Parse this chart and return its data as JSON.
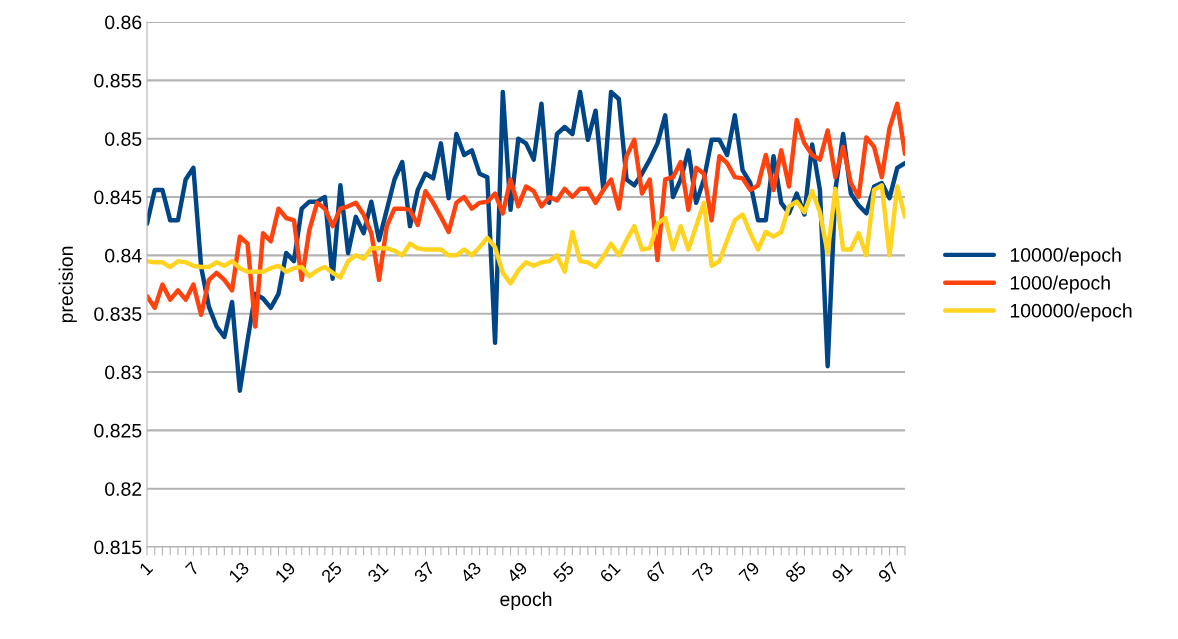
{
  "chart_data": {
    "type": "line",
    "xlabel": "epoch",
    "ylabel": "precision",
    "ylim": [
      0.815,
      0.86
    ],
    "yticks": [
      0.815,
      0.82,
      0.825,
      0.83,
      0.835,
      0.84,
      0.845,
      0.85,
      0.855,
      0.86
    ],
    "grid": "y",
    "legend": "right",
    "marker": "none",
    "line_style": "solid",
    "categories": [
      "1",
      null,
      null,
      null,
      null,
      null,
      "7",
      null,
      null,
      null,
      null,
      null,
      "13",
      null,
      null,
      null,
      null,
      null,
      "19",
      null,
      null,
      null,
      null,
      null,
      "25",
      null,
      null,
      null,
      null,
      null,
      "31",
      null,
      null,
      null,
      null,
      null,
      "37",
      null,
      null,
      null,
      null,
      null,
      "43",
      null,
      null,
      null,
      null,
      null,
      "49",
      null,
      null,
      null,
      null,
      null,
      "55",
      null,
      null,
      null,
      null,
      null,
      "61",
      null,
      null,
      null,
      null,
      null,
      "67",
      null,
      null,
      null,
      null,
      null,
      "73",
      null,
      null,
      null,
      null,
      null,
      "79",
      null,
      null,
      null,
      null,
      null,
      "85",
      null,
      null,
      null,
      null,
      null,
      "91",
      null,
      null,
      null,
      null,
      null,
      "97",
      null,
      null
    ],
    "series": [
      {
        "name": "10000/epoch",
        "color": "#004586",
        "values": [
          0.8427,
          0.8456,
          0.8456,
          0.843,
          0.843,
          0.8465,
          0.8475,
          0.839,
          0.8356,
          0.8339,
          0.833,
          0.836,
          0.8284,
          0.8327,
          0.8367,
          0.8363,
          0.8355,
          0.8367,
          0.8402,
          0.8395,
          0.844,
          0.8446,
          0.8446,
          0.845,
          0.838,
          0.846,
          0.8402,
          0.8433,
          0.8419,
          0.8446,
          0.8413,
          0.8439,
          0.8465,
          0.848,
          0.8425,
          0.8456,
          0.847,
          0.8466,
          0.8496,
          0.8449,
          0.8504,
          0.8486,
          0.849,
          0.847,
          0.8467,
          0.8325,
          0.854,
          0.8439,
          0.85,
          0.8496,
          0.8482,
          0.853,
          0.8445,
          0.8504,
          0.851,
          0.8504,
          0.854,
          0.8499,
          0.8524,
          0.8456,
          0.854,
          0.8534,
          0.8465,
          0.846,
          0.847,
          0.8482,
          0.8496,
          0.852,
          0.845,
          0.8465,
          0.849,
          0.8445,
          0.8465,
          0.8499,
          0.8499,
          0.8486,
          0.852,
          0.8473,
          0.8462,
          0.843,
          0.843,
          0.8485,
          0.8445,
          0.8436,
          0.8453,
          0.8435,
          0.8495,
          0.8456,
          0.8305,
          0.8456,
          0.8504,
          0.8453,
          0.8443,
          0.8436,
          0.8459,
          0.8462,
          0.8449,
          0.8475,
          0.8479
        ]
      },
      {
        "name": "1000/epoch",
        "color": "#ff420e",
        "values": [
          0.8365,
          0.8355,
          0.8375,
          0.8362,
          0.837,
          0.8362,
          0.8375,
          0.8349,
          0.8379,
          0.8385,
          0.8379,
          0.837,
          0.8416,
          0.841,
          0.8339,
          0.8419,
          0.8412,
          0.844,
          0.8432,
          0.843,
          0.8379,
          0.8422,
          0.8445,
          0.844,
          0.8425,
          0.844,
          0.8442,
          0.8445,
          0.8435,
          0.8419,
          0.8379,
          0.8425,
          0.844,
          0.844,
          0.8439,
          0.8426,
          0.8455,
          0.8445,
          0.8433,
          0.842,
          0.8445,
          0.845,
          0.844,
          0.8445,
          0.8446,
          0.8453,
          0.8436,
          0.8465,
          0.8442,
          0.8459,
          0.8455,
          0.8442,
          0.845,
          0.8447,
          0.8457,
          0.845,
          0.8457,
          0.8457,
          0.8445,
          0.8456,
          0.8465,
          0.844,
          0.8485,
          0.8499,
          0.8453,
          0.8465,
          0.8396,
          0.8465,
          0.8467,
          0.848,
          0.8439,
          0.8475,
          0.847,
          0.843,
          0.8485,
          0.8479,
          0.8467,
          0.8466,
          0.8456,
          0.846,
          0.8486,
          0.8456,
          0.849,
          0.8459,
          0.8516,
          0.8496,
          0.8486,
          0.8482,
          0.8507,
          0.8467,
          0.8493,
          0.8462,
          0.845,
          0.8501,
          0.8493,
          0.8467,
          0.8509,
          0.853,
          0.8487
        ]
      },
      {
        "name": "100000/epoch",
        "color": "#ffd320",
        "values": [
          0.8395,
          0.8394,
          0.8394,
          0.839,
          0.8395,
          0.8394,
          0.8391,
          0.839,
          0.839,
          0.8394,
          0.8391,
          0.8395,
          0.8389,
          0.8386,
          0.8386,
          0.8386,
          0.8389,
          0.8391,
          0.8386,
          0.8389,
          0.839,
          0.8382,
          0.8387,
          0.839,
          0.8385,
          0.8381,
          0.8395,
          0.84,
          0.8397,
          0.8406,
          0.8406,
          0.8406,
          0.8404,
          0.84,
          0.841,
          0.8406,
          0.8405,
          0.8405,
          0.8405,
          0.84,
          0.84,
          0.8405,
          0.84,
          0.8407,
          0.8415,
          0.8407,
          0.8385,
          0.8376,
          0.8387,
          0.8394,
          0.8391,
          0.8394,
          0.8395,
          0.84,
          0.8386,
          0.842,
          0.8395,
          0.8394,
          0.839,
          0.8399,
          0.841,
          0.84,
          0.8413,
          0.8425,
          0.8405,
          0.8406,
          0.8427,
          0.8432,
          0.8405,
          0.8425,
          0.8405,
          0.8425,
          0.8445,
          0.8391,
          0.8395,
          0.8413,
          0.843,
          0.8435,
          0.8419,
          0.8405,
          0.842,
          0.8416,
          0.842,
          0.8442,
          0.8446,
          0.8437,
          0.8455,
          0.8437,
          0.8402,
          0.8457,
          0.8405,
          0.8405,
          0.8419,
          0.84,
          0.8456,
          0.846,
          0.84,
          0.8459,
          0.8433
        ]
      }
    ]
  }
}
